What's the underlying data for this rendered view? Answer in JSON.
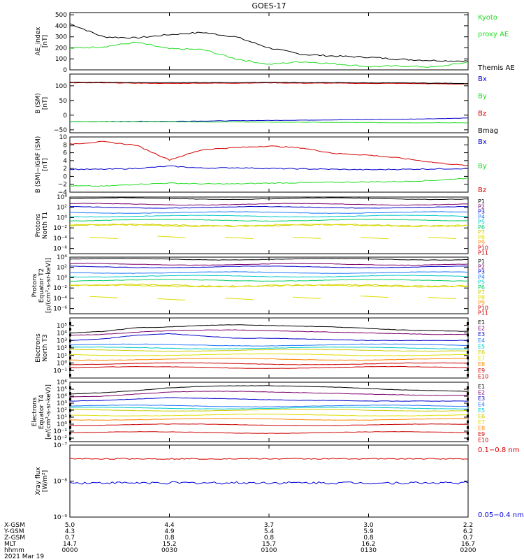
{
  "title": "GOES-17",
  "colors": {
    "black": "#000000",
    "red": "#d40000",
    "green": "#22dd22",
    "blue": "#0000cc",
    "axis": "#000000",
    "xray_long": "#d40000",
    "xray_short": "#0000dd"
  },
  "panels": [
    {
      "id": "ae",
      "ylabel": [
        "AE_index",
        "[nT]"
      ],
      "scale": "linear",
      "ylim": [
        0,
        520
      ],
      "ticks": [
        0,
        100,
        200,
        300,
        400,
        500
      ],
      "tick_labels": [
        "0",
        "100",
        "200",
        "300",
        "400",
        "500"
      ],
      "legend": [
        {
          "label": "Kyoto",
          "color": "#22dd22"
        },
        {
          "label": "proxy AE",
          "color": "#22dd22"
        },
        {
          "label": "",
          "color": "#000000"
        },
        {
          "label": "Themis AE",
          "color": "#000000"
        }
      ]
    },
    {
      "id": "bsm",
      "ylabel": [
        "B (SM)",
        "[nT]"
      ],
      "scale": "linear",
      "ylim": [
        -60,
        140
      ],
      "ticks": [
        -50,
        0,
        50,
        100
      ],
      "tick_labels": [
        "−50",
        "0",
        "50",
        "100"
      ],
      "legend": [
        {
          "label": "Bx",
          "color": "#0000cc"
        },
        {
          "label": "By",
          "color": "#22dd22"
        },
        {
          "label": "Bz",
          "color": "#d40000"
        },
        {
          "label": "Bmag",
          "color": "#000000"
        }
      ]
    },
    {
      "id": "bigrf",
      "ylabel": [
        "B (SM)−IGRF (SM)",
        "[nT]"
      ],
      "scale": "linear",
      "ylim": [
        -4,
        10
      ],
      "ticks": [
        -4,
        -2,
        0,
        2,
        4,
        6,
        8,
        10
      ],
      "tick_labels": [
        "−4",
        "−2",
        "0",
        "2",
        "4",
        "6",
        "8",
        "10"
      ],
      "legend": [
        {
          "label": "Bx",
          "color": "#0000cc"
        },
        {
          "label": "By",
          "color": "#22dd22"
        },
        {
          "label": "Bz",
          "color": "#d40000"
        }
      ]
    },
    {
      "id": "pnorth",
      "ylabel": [
        "Protons",
        "North T1"
      ],
      "scale": "log",
      "ylim": [
        -7,
        4
      ],
      "ticks": [
        -6,
        -4,
        -2,
        0,
        2,
        4
      ],
      "tick_labels": [
        "10⁻⁶",
        "10⁻⁴",
        "10⁻²",
        "10⁰",
        "10²",
        "10⁴"
      ],
      "legend": [
        {
          "label": "P1",
          "color": "#000000"
        },
        {
          "label": "P2",
          "color": "#7a006a"
        },
        {
          "label": "P3",
          "color": "#0000cc"
        },
        {
          "label": "P4",
          "color": "#1e78ff"
        },
        {
          "label": "P5",
          "color": "#00c8c8"
        },
        {
          "label": "P6",
          "color": "#00cc66"
        },
        {
          "label": "P7",
          "color": "#cccc00"
        },
        {
          "label": "P8",
          "color": "#dddd00"
        },
        {
          "label": "P9",
          "color": "#ff8800"
        },
        {
          "label": "P10",
          "color": "#cc0000"
        },
        {
          "label": "P11",
          "color": "#cc0000"
        }
      ]
    },
    {
      "id": "pequator",
      "ylabel": [
        "Protons",
        "Equator T2",
        "[p/(cm²-s-sr-keV)]"
      ],
      "scale": "log",
      "ylim": [
        -7,
        4
      ],
      "ticks": [
        -6,
        -4,
        -2,
        0,
        2,
        4
      ],
      "tick_labels": [
        "10⁻⁶",
        "10⁻⁴",
        "10⁻²",
        "10⁰",
        "10²",
        "10⁴"
      ],
      "legend": [
        {
          "label": "P1",
          "color": "#000000"
        },
        {
          "label": "P2",
          "color": "#7a006a"
        },
        {
          "label": "P3",
          "color": "#0000cc"
        },
        {
          "label": "P4",
          "color": "#1e78ff"
        },
        {
          "label": "P5",
          "color": "#00c8c8"
        },
        {
          "label": "P6",
          "color": "#00cc66"
        },
        {
          "label": "P7",
          "color": "#cccc00"
        },
        {
          "label": "P8",
          "color": "#dddd00"
        },
        {
          "label": "P9",
          "color": "#ff8800"
        },
        {
          "label": "P10",
          "color": "#cc0000"
        },
        {
          "label": "P11",
          "color": "#cc0000"
        }
      ]
    },
    {
      "id": "enorth",
      "ylabel": [
        "Electrons",
        "North T3"
      ],
      "scale": "log",
      "ylim": [
        -2,
        6
      ],
      "ticks": [
        -1,
        0,
        1,
        2,
        3,
        4,
        5
      ],
      "tick_labels": [
        "10⁻¹",
        "10⁰",
        "10¹",
        "10²",
        "10³",
        "10⁴",
        "10⁵"
      ],
      "legend": [
        {
          "label": "E1",
          "color": "#000000"
        },
        {
          "label": "E2",
          "color": "#7a006a"
        },
        {
          "label": "E3",
          "color": "#0000cc"
        },
        {
          "label": "E4",
          "color": "#1e78ff"
        },
        {
          "label": "E5",
          "color": "#00c8c8"
        },
        {
          "label": "E6",
          "color": "#cccc00"
        },
        {
          "label": "E7",
          "color": "#dddd00"
        },
        {
          "label": "E8",
          "color": "#ff8800"
        },
        {
          "label": "E9",
          "color": "#cc0000"
        },
        {
          "label": "E10",
          "color": "#cc0000"
        }
      ]
    },
    {
      "id": "eequator",
      "ylabel": [
        "Electrons",
        "Equator T4",
        "[e/(cm²-s-sr-keV)]"
      ],
      "scale": "log",
      "ylim": [
        -2.5,
        6
      ],
      "ticks": [
        -2,
        -1,
        0,
        1,
        2,
        3,
        4,
        5,
        6
      ],
      "tick_labels": [
        "10⁻²",
        "10⁻¹",
        "10⁰",
        "10¹",
        "10²",
        "10³",
        "10⁴",
        "10⁵",
        "10⁶"
      ],
      "legend": [
        {
          "label": "E1",
          "color": "#000000"
        },
        {
          "label": "E2",
          "color": "#7a006a"
        },
        {
          "label": "E3",
          "color": "#0000cc"
        },
        {
          "label": "E4",
          "color": "#1e78ff"
        },
        {
          "label": "E5",
          "color": "#00c8c8"
        },
        {
          "label": "E6",
          "color": "#cccc00"
        },
        {
          "label": "E7",
          "color": "#dddd00"
        },
        {
          "label": "E8",
          "color": "#ff8800"
        },
        {
          "label": "E9",
          "color": "#cc0000"
        },
        {
          "label": "E10",
          "color": "#cc0000"
        }
      ]
    },
    {
      "id": "xray",
      "ylabel": [
        "Xray flux",
        "[W/m²]"
      ],
      "scale": "log",
      "ylim": [
        -9,
        -7
      ],
      "ticks": [
        -9,
        -8,
        -7
      ],
      "tick_labels": [
        "10⁻⁹",
        "10⁻⁸",
        "10⁻⁷"
      ],
      "legend": [
        {
          "label": "0.1−0.8 nm",
          "color": "#d40000"
        },
        {
          "label": "0.05−0.4 nm",
          "color": "#0000dd"
        }
      ]
    }
  ],
  "ephemeris": {
    "rows": [
      {
        "label": "X-GSM",
        "values": [
          "5.0",
          "4.4",
          "3.7",
          "3.0",
          "2.2"
        ]
      },
      {
        "label": "Y-GSM",
        "values": [
          "4.3",
          "4.9",
          "5.4",
          "5.9",
          "6.2"
        ]
      },
      {
        "label": "Z-GSM",
        "values": [
          "0.7",
          "0.8",
          "0.8",
          "0.8",
          "0.7"
        ]
      },
      {
        "label": "MLT",
        "values": [
          "14.7",
          "15.2",
          "15.7",
          "16.2",
          "16.7"
        ]
      },
      {
        "label": "hhmm",
        "values": [
          "0000",
          "0030",
          "0100",
          "0130",
          "0200"
        ]
      }
    ],
    "date": "2021 Mar 19"
  },
  "chart_data": {
    "type": "line",
    "title": "GOES-17",
    "x_time_range": [
      "0000",
      "0200"
    ],
    "x_minutes": [
      0,
      10,
      20,
      30,
      40,
      50,
      60,
      70,
      80,
      90,
      100,
      110,
      120
    ],
    "panels": {
      "ae": {
        "series": [
          {
            "name": "Themis AE",
            "color": "#000000",
            "values": [
              420,
              300,
              290,
              320,
              340,
              300,
              200,
              140,
              125,
              115,
              95,
              85,
              80
            ]
          },
          {
            "name": "Kyoto proxy AE",
            "color": "#22dd22",
            "values": [
              195,
              210,
              250,
              190,
              185,
              100,
              50,
              75,
              55,
              30,
              35,
              25,
              70
            ]
          }
        ]
      },
      "bsm": {
        "series": [
          {
            "name": "Bx",
            "color": "#0000cc",
            "values": [
              -22,
              -22,
              -21,
              -21,
              -20,
              -19,
              -18,
              -17,
              -16,
              -15,
              -14,
              -12,
              -10
            ]
          },
          {
            "name": "By",
            "color": "#22dd22",
            "values": [
              -22,
              -22,
              -22,
              -22,
              -23,
              -23,
              -24,
              -24,
              -25,
              -25,
              -26,
              -26,
              -26
            ]
          },
          {
            "name": "Bz",
            "color": "#d40000",
            "values": [
              110,
              110,
              109,
              108,
              109,
              109,
              110,
              109,
              109,
              108,
              108,
              107,
              106
            ]
          },
          {
            "name": "Bmag",
            "color": "#000000",
            "values": [
              112,
              112,
              111,
              111,
              111,
              111,
              112,
              111,
              111,
              110,
              110,
              109,
              108
            ]
          }
        ]
      },
      "bigrf": {
        "series": [
          {
            "name": "Bx",
            "color": "#0000cc",
            "values": [
              1.8,
              1.8,
              2.0,
              2.6,
              2.1,
              2.2,
              2.0,
              1.9,
              1.8,
              1.7,
              1.8,
              1.9,
              2.0
            ]
          },
          {
            "name": "By",
            "color": "#22dd22",
            "values": [
              -2.4,
              -2.5,
              -2.0,
              -1.7,
              -1.9,
              -1.9,
              -1.7,
              -1.6,
              -1.5,
              -1.4,
              -1.3,
              -1.0,
              -0.4
            ]
          },
          {
            "name": "Bz",
            "color": "#d40000",
            "values": [
              8.2,
              8.8,
              7.9,
              4.2,
              6.8,
              7.3,
              7.7,
              7.2,
              5.8,
              5.4,
              4.6,
              3.5,
              2.7
            ]
          }
        ]
      },
      "protons_north": {
        "series_log10": [
          3.7,
          2.6,
          2.0,
          1.0,
          0.3,
          -0.5,
          -1.5,
          -1.5,
          -3.8,
          -4.5,
          -5.3
        ]
      },
      "protons_equator": {
        "series_log10": [
          3.6,
          2.6,
          2.1,
          1.0,
          0.3,
          -0.5,
          -1.5,
          -1.6,
          -3.8,
          -4.6,
          -5.4
        ]
      },
      "electrons_north": {
        "E1_log10": [
          4.0,
          4.2,
          4.7,
          4.8,
          5.0,
          5.1,
          5.0,
          4.9,
          4.8,
          4.6,
          4.4,
          4.3,
          4.2
        ],
        "E2_log10": [
          3.7,
          3.8,
          4.1,
          4.3,
          4.4,
          4.4,
          4.3,
          4.2,
          4.1,
          4.0,
          3.9,
          3.8,
          3.8
        ],
        "E3_log10": [
          3.0,
          3.2,
          3.7,
          3.9,
          3.6,
          3.3,
          3.3,
          3.2,
          3.1,
          3.0,
          3.0,
          3.0,
          3.0
        ],
        "constant_log10": [
          2.4,
          2.0,
          1.7,
          1.1,
          0.5,
          -0.1,
          -0.6
        ]
      },
      "electrons_equator": {
        "E1_log10": [
          4.3,
          4.5,
          4.8,
          5.2,
          5.4,
          5.5,
          5.5,
          5.4,
          5.3,
          5.1,
          4.9,
          4.8,
          4.7
        ],
        "E2_log10": [
          3.9,
          4.0,
          4.3,
          4.6,
          4.7,
          4.7,
          4.6,
          4.5,
          4.4,
          4.3,
          4.2,
          4.1,
          4.1
        ],
        "E3_log10": [
          3.3,
          3.4,
          3.6,
          3.8,
          3.7,
          3.6,
          3.5,
          3.4,
          3.4,
          3.3,
          3.3,
          3.3,
          3.3
        ],
        "constant_log10": [
          2.6,
          2.3,
          2.0,
          1.3,
          0.7,
          -0.1,
          -1.2
        ]
      },
      "xray": {
        "series": [
          {
            "name": "0.1−0.8 nm",
            "color": "#d40000",
            "value_log10": -7.38
          },
          {
            "name": "0.05−0.4 nm",
            "color": "#0000dd",
            "value_log10": -8.05
          }
        ]
      }
    }
  }
}
